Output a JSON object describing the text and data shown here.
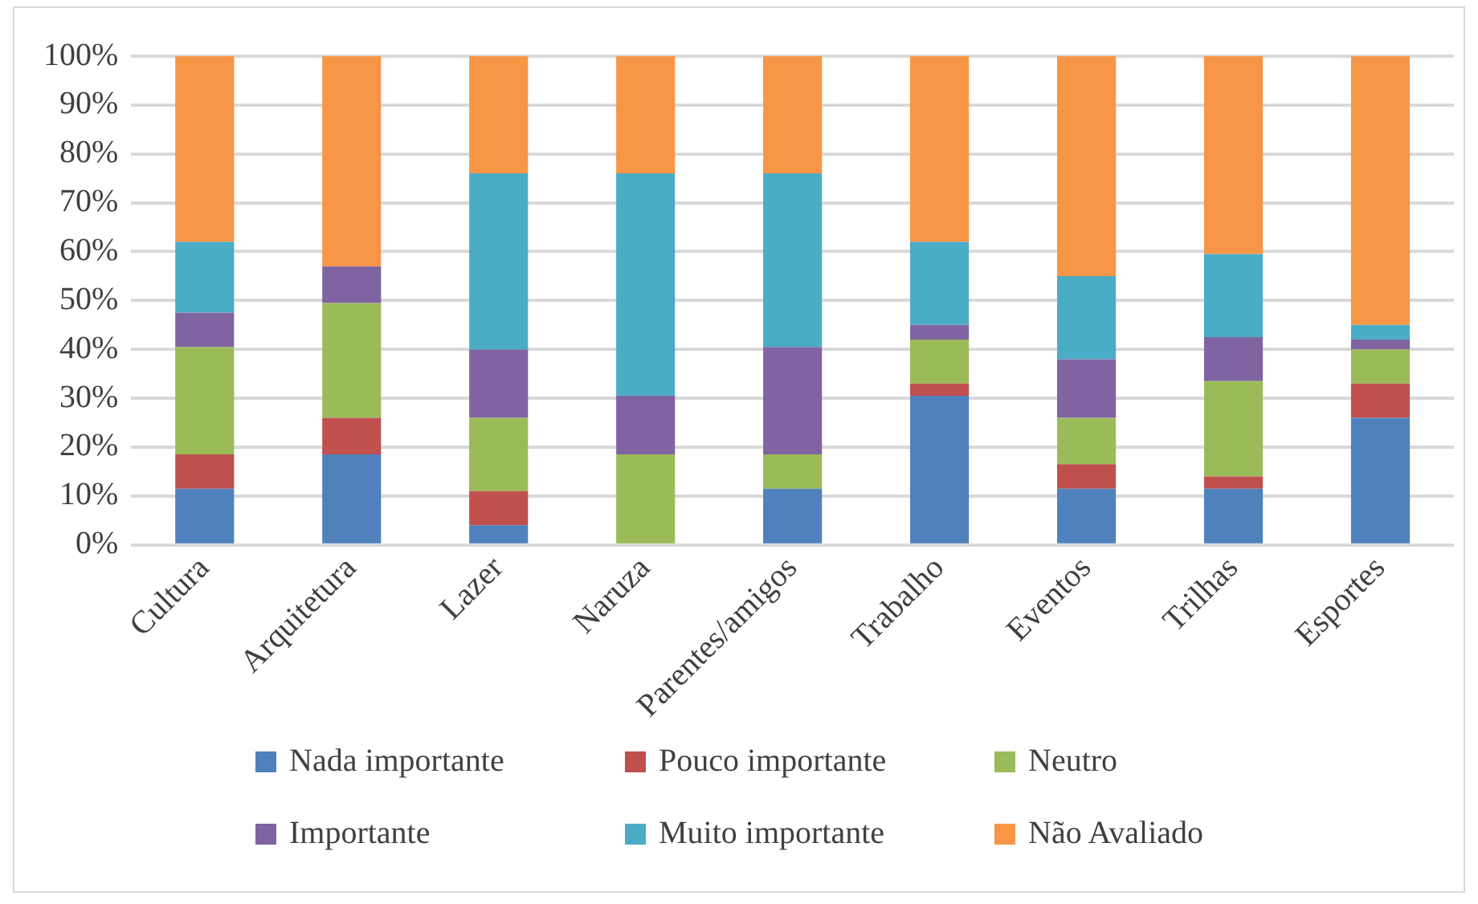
{
  "chart_data": {
    "type": "bar",
    "stacked": true,
    "categories": [
      "Cultura",
      "Arquitetura",
      "Lazer",
      "Naruza",
      "Parentes/amigos",
      "Trabalho",
      "Eventos",
      "Trilhas",
      "Esportes"
    ],
    "series": [
      {
        "name": "Nada importante",
        "color": "#4f81bd",
        "values": [
          11.5,
          18.5,
          4,
          0,
          11.5,
          30.5,
          11.5,
          11.5,
          26
        ]
      },
      {
        "name": "Pouco importante",
        "color": "#c0504d",
        "values": [
          7,
          7.5,
          7,
          0,
          0,
          2.5,
          5,
          2.5,
          7
        ]
      },
      {
        "name": "Neutro",
        "color": "#9bbb59",
        "values": [
          22,
          23.5,
          15,
          18.5,
          7,
          9,
          9.5,
          19.5,
          7
        ]
      },
      {
        "name": "Importante",
        "color": "#8064a2",
        "values": [
          7,
          7.5,
          14,
          12,
          22,
          3,
          12,
          9,
          2
        ]
      },
      {
        "name": "Muito importante",
        "color": "#4bacc6",
        "values": [
          14.5,
          0,
          36,
          45.5,
          35.5,
          17,
          17,
          17,
          3
        ]
      },
      {
        "name": "Não Avaliado",
        "color": "#f79646",
        "values": [
          38,
          43,
          24,
          24,
          24,
          38,
          45,
          40.5,
          55
        ]
      }
    ],
    "ylim": [
      0,
      100
    ],
    "yticks": [
      {
        "value": 0,
        "label": "0%"
      },
      {
        "value": 10,
        "label": "10%"
      },
      {
        "value": 20,
        "label": "20%"
      },
      {
        "value": 30,
        "label": "30%"
      },
      {
        "value": 40,
        "label": "40%"
      },
      {
        "value": 50,
        "label": "50%"
      },
      {
        "value": 60,
        "label": "60%"
      },
      {
        "value": 70,
        "label": "70%"
      },
      {
        "value": 80,
        "label": "80%"
      },
      {
        "value": 90,
        "label": "90%"
      },
      {
        "value": 100,
        "label": "100%"
      }
    ],
    "grid": "y",
    "legend": "bottom"
  }
}
